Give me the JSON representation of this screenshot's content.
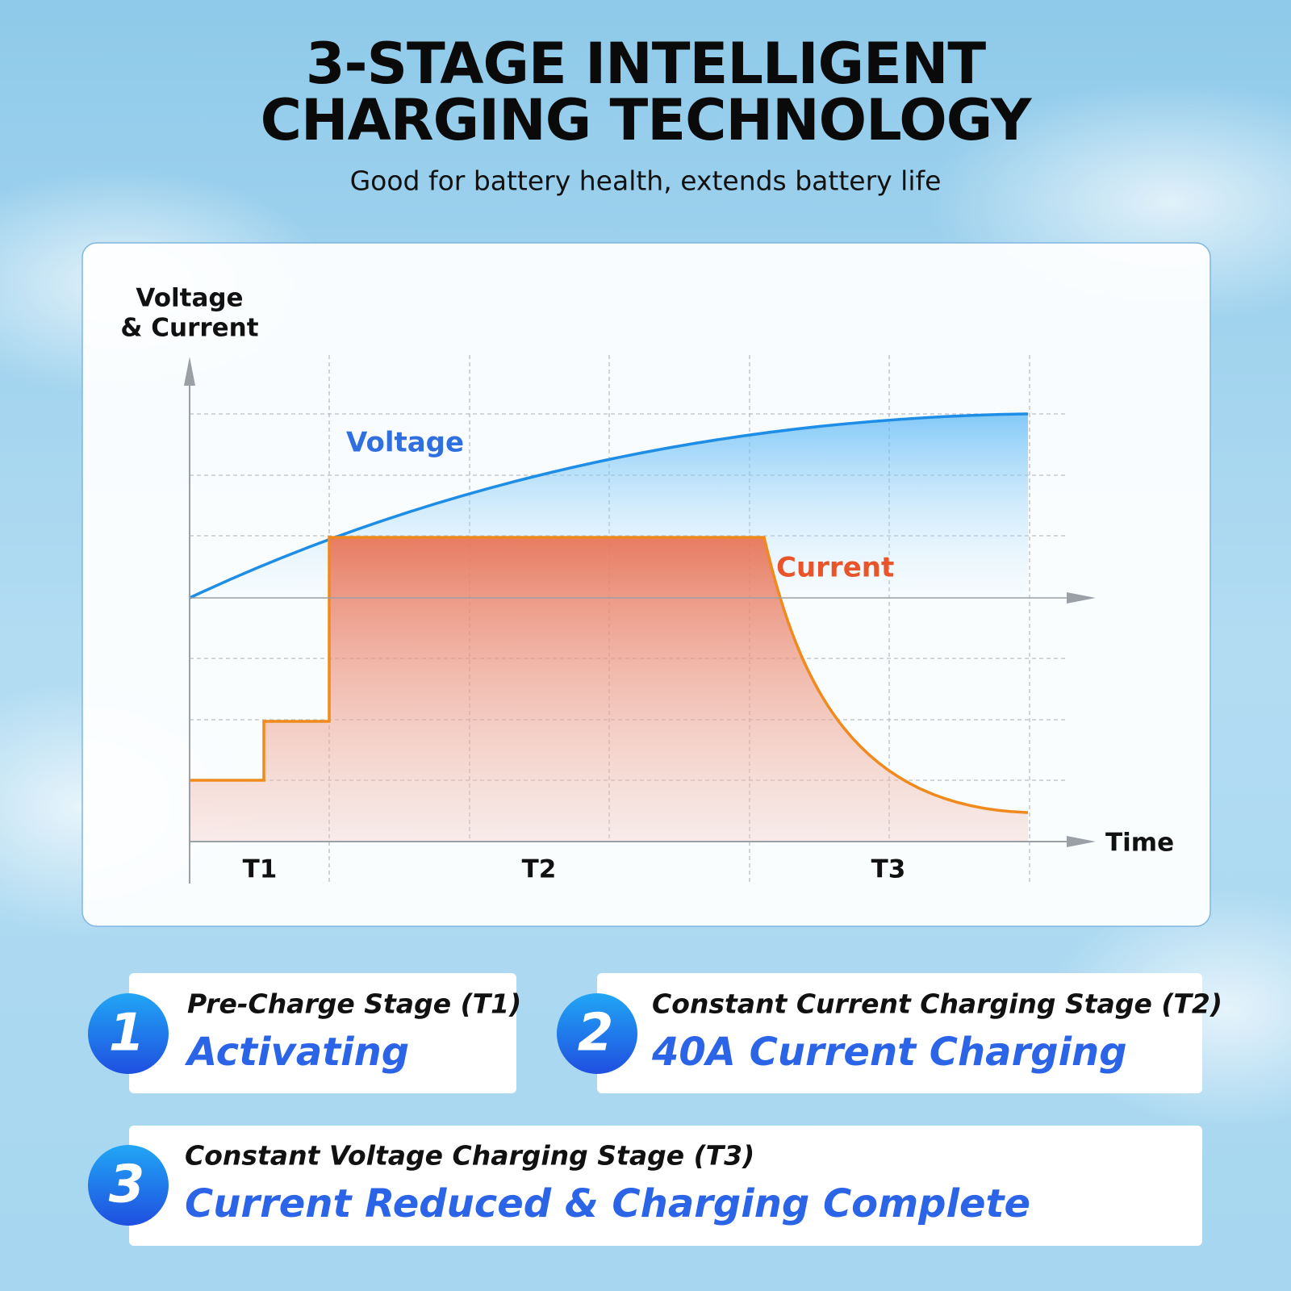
{
  "header": {
    "title_line1": "3-STAGE INTELLIGENT",
    "title_line2": "CHARGING TECHNOLOGY",
    "subtitle": "Good for battery health, extends battery life"
  },
  "diagram": {
    "y_axis_line1": "Voltage",
    "y_axis_line2": "& Current",
    "x_axis": "Time",
    "voltage_label": "Voltage",
    "current_label": "Current",
    "periods": [
      "T1",
      "T2",
      "T3"
    ]
  },
  "stages": [
    {
      "number": "1",
      "stage": "Pre-Charge Stage (T1)",
      "headline": "Activating"
    },
    {
      "number": "2",
      "stage": "Constant Current Charging Stage (T2)",
      "headline": "40A Current Charging"
    },
    {
      "number": "3",
      "stage": "Constant Voltage Charging Stage (T3)",
      "headline": "Current Reduced & Charging Complete"
    }
  ]
}
